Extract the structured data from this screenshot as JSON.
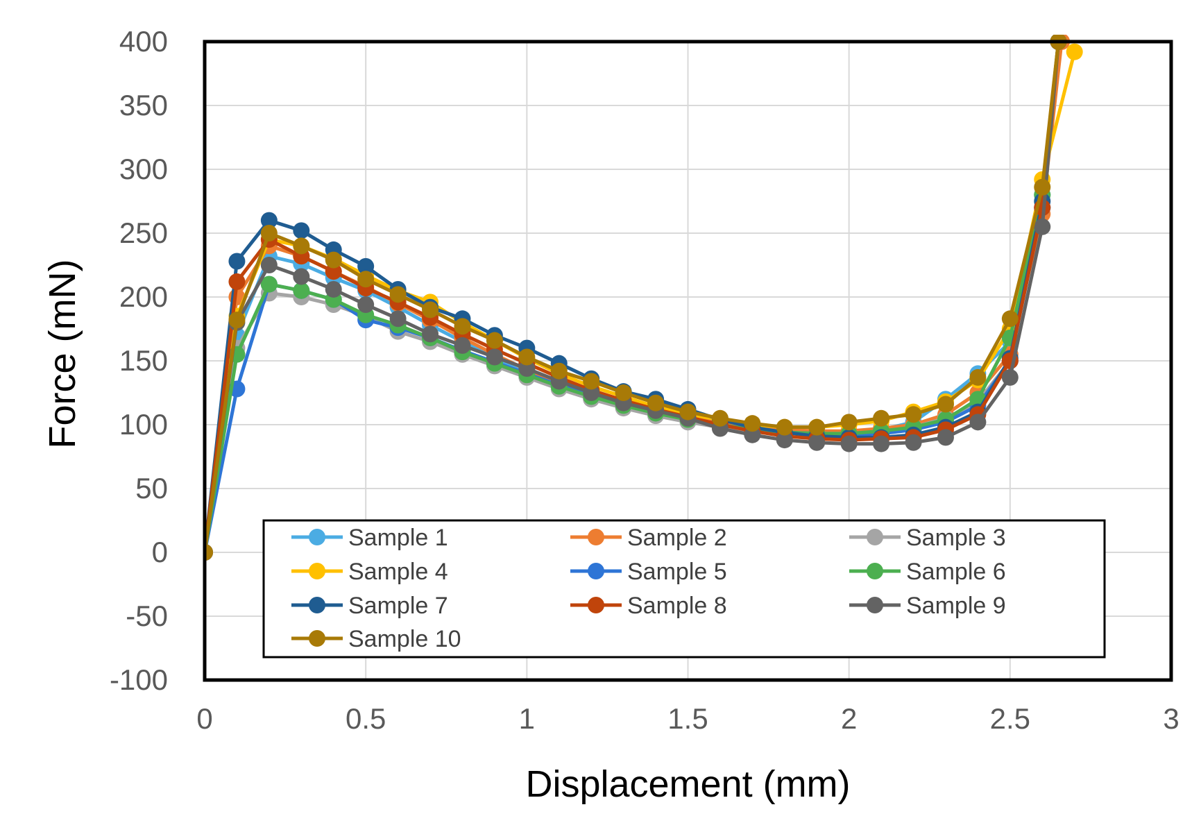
{
  "chart_data": {
    "type": "line",
    "xlabel": "Displacement (mm)",
    "ylabel": "Force (mN)",
    "xlim": [
      0,
      3
    ],
    "ylim": [
      -100,
      400
    ],
    "xticks": [
      0,
      0.5,
      1,
      1.5,
      2,
      2.5,
      3
    ],
    "xtick_labels": [
      "0",
      "0.5",
      "1",
      "1.5",
      "2",
      "2.5",
      "3"
    ],
    "yticks": [
      -100,
      -50,
      0,
      50,
      100,
      150,
      200,
      250,
      300,
      350,
      400
    ],
    "ytick_labels": [
      "-100",
      "-50",
      "0",
      "50",
      "100",
      "150",
      "200",
      "250",
      "300",
      "350",
      "400"
    ],
    "grid": true,
    "legend_position": "bottom-inside",
    "x": [
      0,
      0.1,
      0.2,
      0.3,
      0.4,
      0.5,
      0.6,
      0.7,
      0.8,
      0.9,
      1.0,
      1.1,
      1.2,
      1.3,
      1.4,
      1.5,
      1.6,
      1.7,
      1.8,
      1.9,
      2.0,
      2.1,
      2.2,
      2.3,
      2.4,
      2.5,
      2.6,
      2.7
    ],
    "series": [
      {
        "name": "Sample 1",
        "color": "#4BACE3",
        "x": [
          0,
          0.1,
          0.2,
          0.3,
          0.4,
          0.5,
          0.6,
          0.7,
          0.8,
          0.9,
          1.0,
          1.1,
          1.2,
          1.3,
          1.4,
          1.5,
          1.6,
          1.7,
          1.8,
          1.9,
          2.0,
          2.1,
          2.2,
          2.3,
          2.4,
          2.5,
          2.6,
          2.65
        ],
        "values": [
          0,
          170,
          232,
          226,
          215,
          205,
          192,
          178,
          165,
          152,
          140,
          130,
          122,
          115,
          108,
          103,
          99,
          96,
          95,
          94,
          94,
          96,
          102,
          120,
          140,
          165,
          280,
          400
        ]
      },
      {
        "name": "Sample 2",
        "color": "#ED7D31",
        "x": [
          0,
          0.1,
          0.2,
          0.3,
          0.4,
          0.5,
          0.6,
          0.7,
          0.8,
          0.9,
          1.0,
          1.1,
          1.2,
          1.3,
          1.4,
          1.5,
          1.6,
          1.7,
          1.8,
          1.9,
          2.0,
          2.1,
          2.2,
          2.3,
          2.4,
          2.5,
          2.6,
          2.66
        ],
        "values": [
          0,
          200,
          240,
          232,
          220,
          208,
          195,
          182,
          168,
          155,
          143,
          133,
          124,
          117,
          111,
          106,
          102,
          98,
          96,
          95,
          95,
          97,
          100,
          108,
          125,
          155,
          265,
          400
        ]
      },
      {
        "name": "Sample 3",
        "color": "#A5A5A5",
        "x": [
          0,
          0.1,
          0.2,
          0.3,
          0.4,
          0.5,
          0.6,
          0.7,
          0.8,
          0.9,
          1.0,
          1.1,
          1.2,
          1.3,
          1.4,
          1.5,
          1.6,
          1.7,
          1.8,
          1.9,
          2.0,
          2.1,
          2.2,
          2.3,
          2.4,
          2.5,
          2.6,
          2.65
        ],
        "values": [
          0,
          160,
          203,
          200,
          194,
          185,
          173,
          165,
          155,
          146,
          137,
          128,
          120,
          113,
          107,
          102,
          98,
          95,
          94,
          93,
          93,
          94,
          98,
          105,
          118,
          150,
          270,
          400
        ]
      },
      {
        "name": "Sample 4",
        "color": "#FFC000",
        "x": [
          0,
          0.1,
          0.2,
          0.3,
          0.4,
          0.5,
          0.6,
          0.7,
          0.8,
          0.9,
          1.0,
          1.1,
          1.2,
          1.3,
          1.4,
          1.5,
          1.6,
          1.7,
          1.8,
          1.9,
          2.0,
          2.1,
          2.2,
          2.3,
          2.4,
          2.5,
          2.6,
          2.7
        ],
        "values": [
          0,
          185,
          245,
          240,
          230,
          217,
          205,
          196,
          180,
          166,
          152,
          140,
          130,
          122,
          114,
          108,
          104,
          100,
          98,
          98,
          100,
          103,
          110,
          118,
          135,
          175,
          292,
          392
        ]
      },
      {
        "name": "Sample 5",
        "color": "#2E75D6",
        "x": [
          0,
          0.1,
          0.2,
          0.3,
          0.4,
          0.5,
          0.6,
          0.7,
          0.8,
          0.9,
          1.0,
          1.1,
          1.2,
          1.3,
          1.4,
          1.5,
          1.6,
          1.7,
          1.8,
          1.9,
          2.0,
          2.1,
          2.2,
          2.3,
          2.4,
          2.5,
          2.6,
          2.65
        ],
        "values": [
          0,
          128,
          210,
          205,
          198,
          182,
          176,
          168,
          158,
          149,
          140,
          131,
          123,
          116,
          110,
          105,
          100,
          96,
          94,
          93,
          92,
          93,
          96,
          102,
          115,
          150,
          270,
          400
        ]
      },
      {
        "name": "Sample 6",
        "color": "#4CAF50",
        "x": [
          0,
          0.1,
          0.2,
          0.3,
          0.4,
          0.5,
          0.6,
          0.7,
          0.8,
          0.9,
          1.0,
          1.1,
          1.2,
          1.3,
          1.4,
          1.5,
          1.6,
          1.7,
          1.8,
          1.9,
          2.0,
          2.1,
          2.2,
          2.3,
          2.4,
          2.5,
          2.6,
          2.65
        ],
        "values": [
          0,
          155,
          210,
          205,
          198,
          186,
          178,
          168,
          157,
          148,
          139,
          130,
          122,
          115,
          109,
          104,
          100,
          96,
          94,
          93,
          93,
          95,
          98,
          104,
          120,
          168,
          280,
          400
        ]
      },
      {
        "name": "Sample 7",
        "color": "#1F5C91",
        "x": [
          0,
          0.1,
          0.2,
          0.3,
          0.4,
          0.5,
          0.6,
          0.7,
          0.8,
          0.9,
          1.0,
          1.1,
          1.2,
          1.3,
          1.4,
          1.5,
          1.6,
          1.7,
          1.8,
          1.9,
          2.0,
          2.1,
          2.2,
          2.3,
          2.4,
          2.5,
          2.6,
          2.65
        ],
        "values": [
          0,
          228,
          260,
          252,
          237,
          224,
          206,
          192,
          183,
          170,
          160,
          148,
          136,
          126,
          120,
          112,
          104,
          98,
          94,
          91,
          90,
          90,
          92,
          98,
          110,
          152,
          275,
          400
        ]
      },
      {
        "name": "Sample 8",
        "color": "#C0440B",
        "x": [
          0,
          0.1,
          0.2,
          0.3,
          0.4,
          0.5,
          0.6,
          0.7,
          0.8,
          0.9,
          1.0,
          1.1,
          1.2,
          1.3,
          1.4,
          1.5,
          1.6,
          1.7,
          1.8,
          1.9,
          2.0,
          2.1,
          2.2,
          2.3,
          2.4,
          2.5,
          2.6,
          2.65
        ],
        "values": [
          0,
          212,
          245,
          232,
          220,
          207,
          196,
          184,
          171,
          159,
          148,
          137,
          127,
          119,
          112,
          106,
          100,
          95,
          91,
          89,
          88,
          89,
          90,
          96,
          108,
          150,
          270,
          400
        ]
      },
      {
        "name": "Sample 9",
        "color": "#636363",
        "x": [
          0,
          0.1,
          0.2,
          0.3,
          0.4,
          0.5,
          0.6,
          0.7,
          0.8,
          0.9,
          1.0,
          1.1,
          1.2,
          1.3,
          1.4,
          1.5,
          1.6,
          1.7,
          1.8,
          1.9,
          2.0,
          2.1,
          2.2,
          2.3,
          2.4,
          2.5,
          2.6,
          2.65
        ],
        "values": [
          0,
          180,
          225,
          216,
          206,
          194,
          183,
          171,
          162,
          153,
          144,
          134,
          125,
          117,
          111,
          105,
          97,
          92,
          88,
          86,
          85,
          85,
          86,
          90,
          102,
          137,
          255,
          400
        ]
      },
      {
        "name": "Sample 10",
        "color": "#A87A07",
        "x": [
          0,
          0.1,
          0.2,
          0.3,
          0.4,
          0.5,
          0.6,
          0.7,
          0.8,
          0.9,
          1.0,
          1.1,
          1.2,
          1.3,
          1.4,
          1.5,
          1.6,
          1.7,
          1.8,
          1.9,
          2.0,
          2.1,
          2.2,
          2.3,
          2.4,
          2.5,
          2.6,
          2.65
        ],
        "values": [
          0,
          182,
          250,
          240,
          229,
          214,
          202,
          190,
          177,
          166,
          153,
          142,
          134,
          125,
          117,
          110,
          105,
          101,
          98,
          98,
          102,
          105,
          108,
          116,
          137,
          183,
          286,
          400
        ]
      }
    ]
  }
}
